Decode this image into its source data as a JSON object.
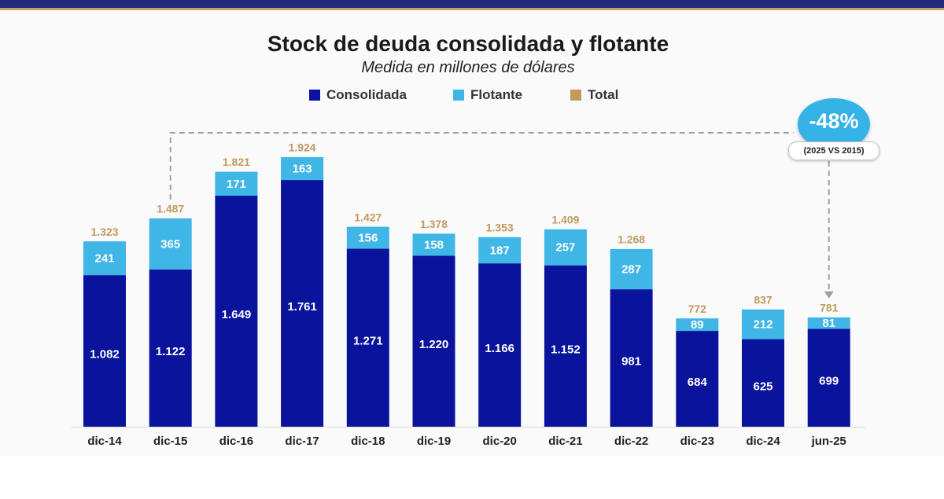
{
  "colors": {
    "consolidada": "#0a139c",
    "flotante": "#40b6e6",
    "total": "#c19a60",
    "axis_text": "#222222",
    "dashed": "#a0a0a0"
  },
  "chart_data": {
    "type": "bar",
    "stacked": true,
    "title": "Stock de deuda consolidada y flotante",
    "subtitle": "Medida en millones de dólares",
    "categories": [
      "dic-14",
      "dic-15",
      "dic-16",
      "dic-17",
      "dic-18",
      "dic-19",
      "dic-20",
      "dic-21",
      "dic-22",
      "dic-23",
      "dic-24",
      "jun-25"
    ],
    "series": [
      {
        "name": "Consolidada",
        "values": [
          1082,
          1122,
          1649,
          1761,
          1271,
          1220,
          1166,
          1152,
          981,
          684,
          625,
          699
        ],
        "labels": [
          "1.082",
          "1.122",
          "1.649",
          "1.761",
          "1.271",
          "1.220",
          "1.166",
          "1.152",
          "981",
          "684",
          "625",
          "699"
        ]
      },
      {
        "name": "Flotante",
        "values": [
          241,
          365,
          171,
          163,
          156,
          158,
          187,
          257,
          287,
          89,
          212,
          81
        ],
        "labels": [
          "241",
          "365",
          "171",
          "163",
          "156",
          "158",
          "187",
          "257",
          "287",
          "89",
          "212",
          "81"
        ]
      }
    ],
    "totals": {
      "name": "Total",
      "values": [
        1323,
        1487,
        1821,
        1924,
        1427,
        1378,
        1353,
        1409,
        1268,
        772,
        837,
        781
      ],
      "labels": [
        "1.323",
        "1.487",
        "1.821",
        "1.924",
        "1.427",
        "1.378",
        "1.353",
        "1.409",
        "1.268",
        "772",
        "837",
        "781"
      ]
    },
    "ylim": [
      0,
      1924
    ],
    "legend": [
      "Consolidada",
      "Flotante",
      "Total"
    ],
    "legend_position": "top-center",
    "annotation": {
      "value": "-48%",
      "note": "(2025 VS 2015)",
      "from": "dic-15",
      "to": "jun-25"
    }
  }
}
